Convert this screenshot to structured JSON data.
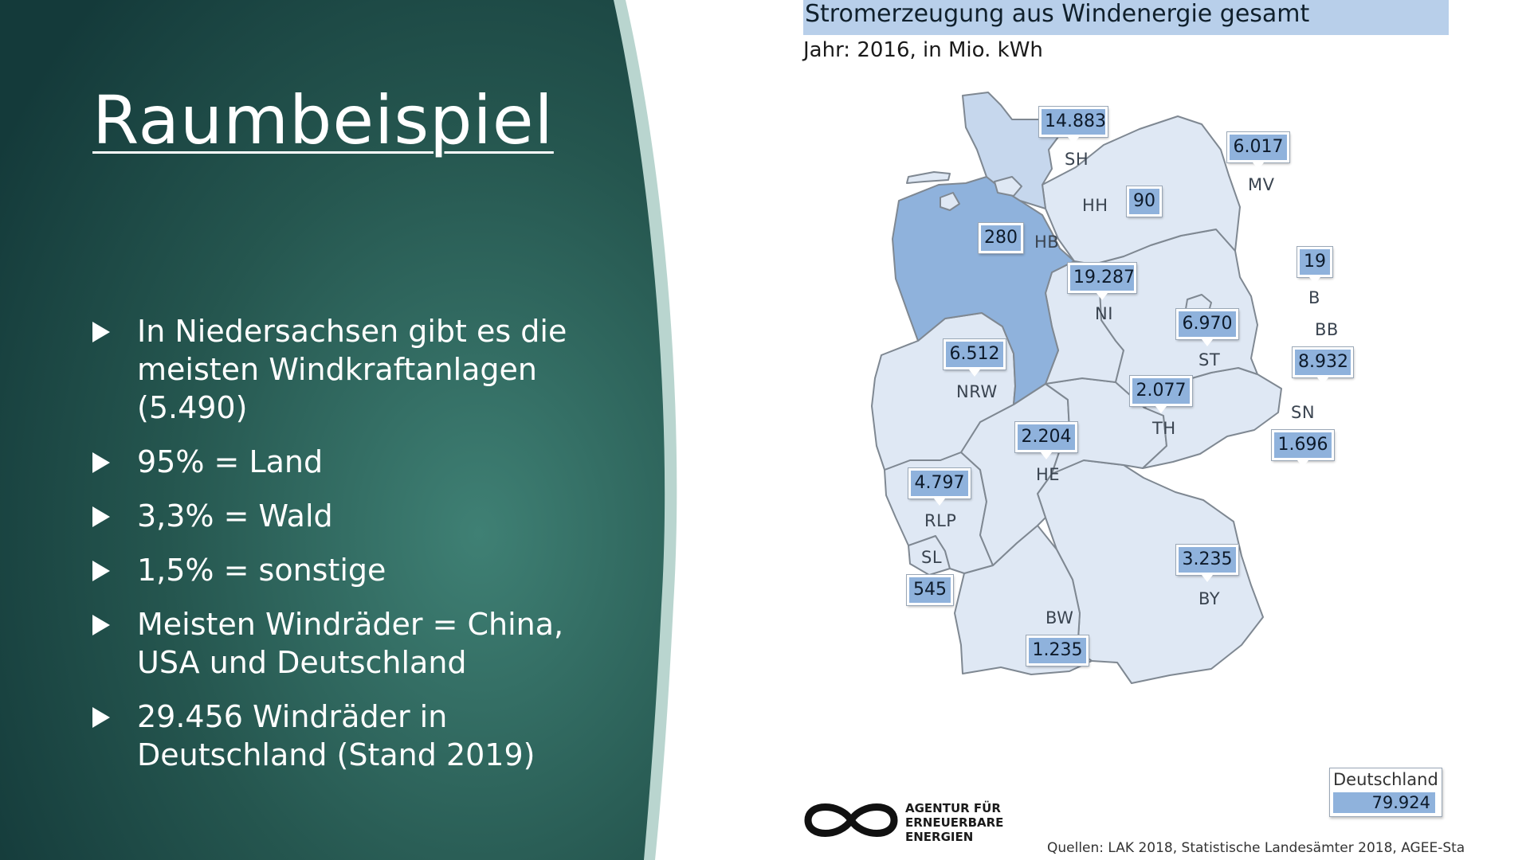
{
  "slide": {
    "title": "Raumbeispiel",
    "bullets": [
      "In Niedersachsen gibt es die\nmeisten Windkraftanlagen\n(5.490)",
      "95% = Land",
      "3,3% = Wald",
      "1,5% = sonstige",
      "Meisten Windräder = China,\nUSA und Deutschland",
      "29.456 Windräder in\nDeutschland (Stand 2019)"
    ]
  },
  "map": {
    "title": "Stromerzeugung aus Windenergie gesamt",
    "subtitle": "Jahr: 2016, in Mio. kWh",
    "states": [
      {
        "code": "SH",
        "value": "14.883"
      },
      {
        "code": "MV",
        "value": "6.017"
      },
      {
        "code": "HH",
        "value": "90"
      },
      {
        "code": "HB",
        "value": "280"
      },
      {
        "code": "NI",
        "value": "19.287"
      },
      {
        "code": "B",
        "value": "19"
      },
      {
        "code": "BB",
        "value": "8.932"
      },
      {
        "code": "ST",
        "value": "6.970"
      },
      {
        "code": "NRW",
        "value": "6.512"
      },
      {
        "code": "TH",
        "value": "2.077"
      },
      {
        "code": "SN",
        "value": "1.696"
      },
      {
        "code": "HE",
        "value": "2.204"
      },
      {
        "code": "RLP",
        "value": "4.797"
      },
      {
        "code": "SL",
        "value": "545"
      },
      {
        "code": "BY",
        "value": "3.235"
      },
      {
        "code": "BW",
        "value": "1.235"
      }
    ],
    "total": {
      "label": "Deutschland",
      "value": "79.924"
    },
    "sources": "Quellen:   LAK 2018, Statistische Landesämter 2018, AGEE-Sta",
    "colors": {
      "high": "#8fb2dc",
      "mid": "#c6d7ed",
      "low": "#dfe8f4",
      "border": "#7f8892"
    }
  },
  "logo": {
    "line1": "AGENTUR FÜR",
    "line2": "ERNEUERBARE",
    "line3": "ENERGIEN",
    "icon": "infinity-icon"
  }
}
